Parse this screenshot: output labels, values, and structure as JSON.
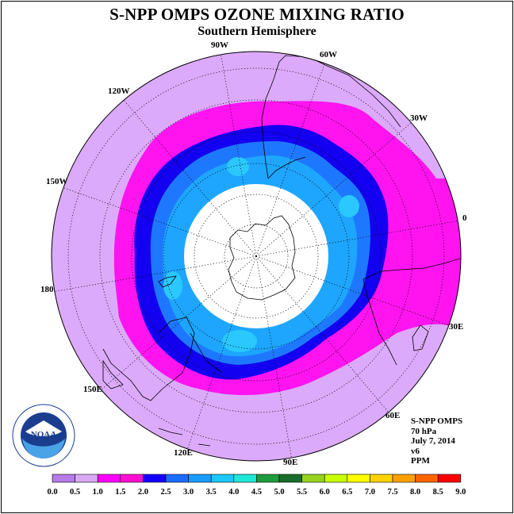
{
  "title": "S-NPP OMPS OZONE MIXING RATIO",
  "subtitle": "Southern Hemisphere",
  "longitude_labels": {
    "w90": "90W",
    "w60": "60W",
    "w30": "30W",
    "zero": "0",
    "e30": "30E",
    "e60": "60E",
    "e90": "90E",
    "e120": "120E",
    "e150": "150E",
    "d180": "180",
    "w150": "150W",
    "w120": "120W"
  },
  "info": {
    "instrument": "S-NPP OMPS",
    "level": "70 hPa",
    "date": "July 7, 2014",
    "version": "v6",
    "units": "PPM"
  },
  "logo": {
    "icon": "noaa-logo-icon",
    "text": "NOAA"
  },
  "colorbar": {
    "ticks": [
      "0.0",
      "0.5",
      "1.0",
      "1.5",
      "2.0",
      "2.5",
      "3.0",
      "3.5",
      "4.0",
      "4.5",
      "5.0",
      "5.5",
      "6.0",
      "6.5",
      "7.0",
      "7.5",
      "8.0",
      "8.5",
      "9.0"
    ],
    "colors": [
      "#b57be8",
      "#d9a9f5",
      "#ff00ff",
      "#ff0fd0",
      "#1400ff",
      "#1a6cff",
      "#1a9cff",
      "#19c8ff",
      "#1ee8d8",
      "#1e9b3c",
      "#186e2a",
      "#96d21e",
      "#c8ff00",
      "#ffff00",
      "#ffd200",
      "#ffa000",
      "#ff6400",
      "#ff0000",
      "#8c5a32"
    ]
  },
  "map_bands": {
    "colors": {
      "band_0_5_1_0": "#dcaafa",
      "band_1_0_1_5": "#ff14f0",
      "band_1_5_2_0": "#1400f0",
      "band_2_0_2_5": "#1e78ff",
      "band_2_5_3_0": "#1ea6ff",
      "band_3_0_3_5": "#2ac8ff",
      "no_data": "#ffffff"
    }
  }
}
